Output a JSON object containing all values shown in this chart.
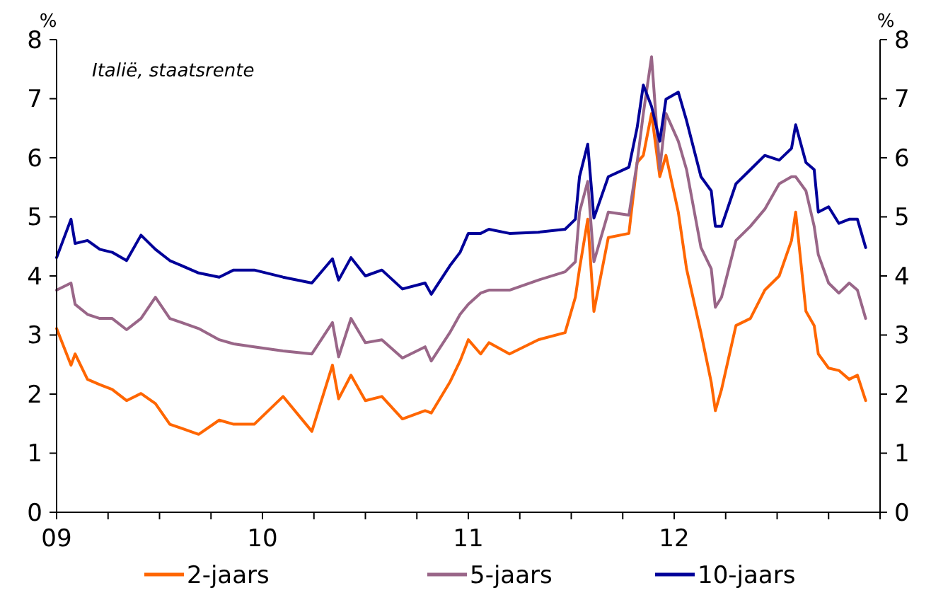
{
  "chart_data": {
    "type": "line",
    "ylabel": "%",
    "y2label": "%",
    "annotations": [
      "Italië, staatsrente"
    ],
    "x": [
      2009,
      2009.07,
      2009.09,
      2009.15,
      2009.21,
      2009.27,
      2009.34,
      2009.41,
      2009.48,
      2009.55,
      2009.69,
      2009.79,
      2009.86,
      2009.96,
      2010.1,
      2010.24,
      2010.34,
      2010.37,
      2010.43,
      2010.5,
      2010.58,
      2010.68,
      2010.79,
      2010.82,
      2010.91,
      2010.96,
      2011,
      2011.06,
      2011.1,
      2011.2,
      2011.34,
      2011.47,
      2011.52,
      2011.54,
      2011.58,
      2011.61,
      2011.68,
      2011.78,
      2011.82,
      2011.85,
      2011.89,
      2011.93,
      2011.96,
      2012.02,
      2012.06,
      2012.13,
      2012.18,
      2012.2,
      2012.23,
      2012.3,
      2012.37,
      2012.44,
      2012.51,
      2012.57,
      2012.59,
      2012.64,
      2012.68,
      2012.7,
      2012.75,
      2012.8,
      2012.85,
      2012.89,
      2012.93
    ],
    "series": [
      {
        "name": "2-jaars",
        "color": "#ff6600",
        "values": [
          3.11,
          2.49,
          2.68,
          2.25,
          2.16,
          2.08,
          1.89,
          2.01,
          1.84,
          1.49,
          1.32,
          1.56,
          1.49,
          1.49,
          1.96,
          1.37,
          2.49,
          1.92,
          2.32,
          1.89,
          1.96,
          1.58,
          1.72,
          1.68,
          2.2,
          2.56,
          2.92,
          2.68,
          2.87,
          2.68,
          2.92,
          3.04,
          3.64,
          4.12,
          4.96,
          3.4,
          4.65,
          4.72,
          5.92,
          6.04,
          6.75,
          5.68,
          6.04,
          5.08,
          4.12,
          3.04,
          2.2,
          1.72,
          2.08,
          3.16,
          3.28,
          3.76,
          4,
          4.6,
          5.08,
          3.4,
          3.16,
          2.68,
          2.44,
          2.4,
          2.25,
          2.32,
          1.89
        ]
      },
      {
        "name": "5-jaars",
        "color": "#996688",
        "values": [
          3.76,
          3.88,
          3.52,
          3.35,
          3.28,
          3.28,
          3.09,
          3.28,
          3.64,
          3.28,
          3.11,
          2.92,
          2.85,
          2.8,
          2.73,
          2.68,
          3.21,
          2.63,
          3.28,
          2.87,
          2.92,
          2.61,
          2.8,
          2.56,
          3.04,
          3.35,
          3.52,
          3.71,
          3.76,
          3.76,
          3.93,
          4.07,
          4.24,
          5.08,
          5.6,
          4.24,
          5.08,
          5.03,
          5.92,
          6.75,
          7.71,
          5.8,
          6.75,
          6.28,
          5.8,
          4.48,
          4.12,
          3.47,
          3.64,
          4.6,
          4.84,
          5.13,
          5.56,
          5.68,
          5.68,
          5.44,
          4.84,
          4.36,
          3.88,
          3.71,
          3.88,
          3.76,
          3.28
        ]
      },
      {
        "name": "10-jaars",
        "color": "#000099",
        "values": [
          4.31,
          4.96,
          4.55,
          4.6,
          4.45,
          4.4,
          4.26,
          4.69,
          4.45,
          4.26,
          4.05,
          3.98,
          4.1,
          4.1,
          3.98,
          3.88,
          4.29,
          3.93,
          4.31,
          4,
          4.1,
          3.78,
          3.88,
          3.69,
          4.17,
          4.4,
          4.72,
          4.72,
          4.79,
          4.72,
          4.74,
          4.79,
          4.96,
          5.68,
          6.23,
          4.98,
          5.68,
          5.84,
          6.51,
          7.23,
          6.87,
          6.28,
          6.99,
          7.11,
          6.63,
          5.68,
          5.44,
          4.84,
          4.84,
          5.56,
          5.8,
          6.04,
          5.96,
          6.16,
          6.56,
          5.92,
          5.8,
          5.08,
          5.17,
          4.89,
          4.96,
          4.96,
          4.48
        ]
      }
    ],
    "xlim": [
      2009,
      2013
    ],
    "xticks": [
      {
        "value": 2009,
        "label": "09"
      },
      {
        "value": 2009.25,
        "label": null
      },
      {
        "value": 2009.5,
        "label": null
      },
      {
        "value": 2009.75,
        "label": null
      },
      {
        "value": 2010,
        "label": "10"
      },
      {
        "value": 2010.25,
        "label": null
      },
      {
        "value": 2010.5,
        "label": null
      },
      {
        "value": 2010.75,
        "label": null
      },
      {
        "value": 2011,
        "label": "11"
      },
      {
        "value": 2011.25,
        "label": null
      },
      {
        "value": 2011.5,
        "label": null
      },
      {
        "value": 2011.75,
        "label": null
      },
      {
        "value": 2012,
        "label": "12"
      },
      {
        "value": 2012.25,
        "label": null
      },
      {
        "value": 2012.5,
        "label": null
      },
      {
        "value": 2012.75,
        "label": null
      },
      {
        "value": 2013,
        "label": null
      }
    ],
    "ylim": [
      0,
      8
    ],
    "yticks": [
      0,
      1,
      2,
      3,
      4,
      5,
      6,
      7,
      8
    ],
    "y2lim": [
      0,
      8
    ],
    "y2ticks": [
      0,
      1,
      2,
      3,
      4,
      5,
      6,
      7,
      8
    ],
    "grid": false,
    "legend": "bottom",
    "marker": "none",
    "line_style": "solid"
  }
}
